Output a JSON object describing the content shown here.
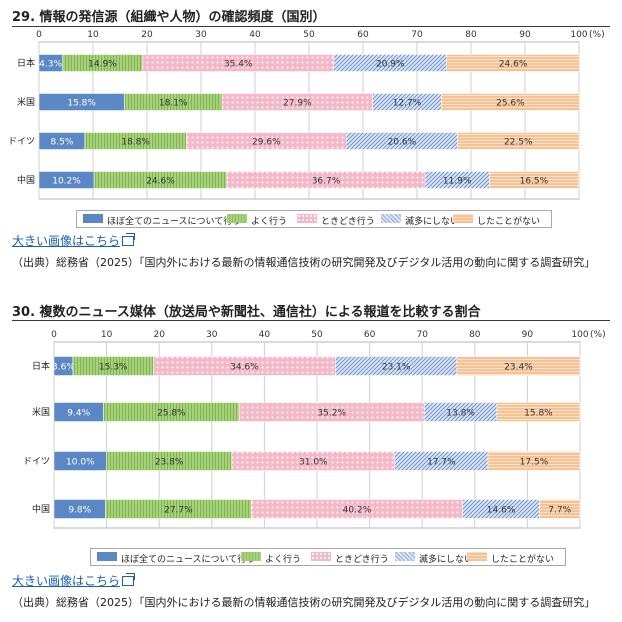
{
  "sections": [
    {
      "title": "29. 情報の発信源（組織や人物）の確認頻度（国別）",
      "link_label": "大きい画像はこちら",
      "source": "（出典）総務省（2025）「国内外における最新の情報通信技術の研究開発及びデジタル活用の動向に関する調査研究」"
    },
    {
      "title": "30. 複数のニュース媒体（放送局や新聞社、通信社）による報道を比較する割合",
      "link_label": "大きい画像はこちら",
      "source": "（出典）総務省（2025）「国内外における最新の情報通信技術の研究開発及びデジタル活用の動向に関する調査研究」"
    }
  ],
  "chart_data": [
    {
      "type": "bar",
      "orientation": "horizontal-stacked",
      "title": "29. 情報の発信源（組織や人物）の確認頻度（国別）",
      "categories": [
        "日本",
        "米国",
        "ドイツ",
        "中国"
      ],
      "xlim": [
        0,
        100
      ],
      "xticks": [
        "0",
        "10",
        "20",
        "30",
        "40",
        "50",
        "60",
        "70",
        "80",
        "90",
        "100"
      ],
      "x_unit": "(%)",
      "legend_position": "bottom",
      "series": [
        {
          "name": "ほぼ全てのニュースについて行う",
          "color": "#5b87c5",
          "pattern": "solid",
          "values": [
            4.3,
            15.8,
            8.5,
            10.2
          ],
          "labels": [
            "4.3%",
            "15.8%",
            "8.5%",
            "10.2%"
          ]
        },
        {
          "name": "よく行う",
          "color": "#a8d27a",
          "pattern": "vlines",
          "values": [
            14.9,
            18.1,
            18.8,
            24.6
          ],
          "labels": [
            "14.9%",
            "18.1%",
            "18.8%",
            "24.6%"
          ]
        },
        {
          "name": "ときどき行う",
          "color": "#f5b8c8",
          "pattern": "dots",
          "values": [
            35.4,
            27.9,
            29.6,
            36.7
          ],
          "labels": [
            "35.4%",
            "27.9%",
            "29.6%",
            "36.7%"
          ]
        },
        {
          "name": "滅多にしない",
          "color": "#a9bfe6",
          "pattern": "diag",
          "values": [
            20.9,
            12.7,
            20.6,
            11.9
          ],
          "labels": [
            "20.9%",
            "12.7%",
            "20.6%",
            "11.9%"
          ]
        },
        {
          "name": "したことがない",
          "color": "#f8c194",
          "pattern": "hlines",
          "values": [
            24.6,
            25.6,
            22.5,
            16.5
          ],
          "labels": [
            "24.6%",
            "25.6%",
            "22.5%",
            "16.5%"
          ]
        }
      ]
    },
    {
      "type": "bar",
      "orientation": "horizontal-stacked",
      "title": "30. 複数のニュース媒体（放送局や新聞社、通信社）による報道を比較する割合",
      "categories": [
        "日本",
        "米国",
        "ドイツ",
        "中国"
      ],
      "xlim": [
        0,
        100
      ],
      "xticks": [
        "0",
        "10",
        "20",
        "30",
        "40",
        "50",
        "60",
        "70",
        "80",
        "90",
        "100"
      ],
      "x_unit": "(%)",
      "legend_position": "bottom",
      "series": [
        {
          "name": "ほぼ全てのニュースについて行う",
          "color": "#5b87c5",
          "pattern": "solid",
          "values": [
            3.6,
            9.4,
            10.0,
            9.8
          ],
          "labels": [
            "3.6%",
            "9.4%",
            "10.0%",
            "9.8%"
          ]
        },
        {
          "name": "よく行う",
          "color": "#a8d27a",
          "pattern": "vlines",
          "values": [
            15.3,
            25.8,
            23.8,
            27.7
          ],
          "labels": [
            "15.3%",
            "25.8%",
            "23.8%",
            "27.7%"
          ]
        },
        {
          "name": "ときどき行う",
          "color": "#f5b8c8",
          "pattern": "dots",
          "values": [
            34.6,
            35.2,
            31.0,
            40.2
          ],
          "labels": [
            "34.6%",
            "35.2%",
            "31.0%",
            "40.2%"
          ]
        },
        {
          "name": "滅多にしない",
          "color": "#a9bfe6",
          "pattern": "diag",
          "values": [
            23.1,
            13.8,
            17.7,
            14.6
          ],
          "labels": [
            "23.1%",
            "13.8%",
            "17.7%",
            "14.6%"
          ]
        },
        {
          "name": "したことがない",
          "color": "#f8c194",
          "pattern": "hlines",
          "values": [
            23.4,
            15.8,
            17.5,
            7.7
          ],
          "labels": [
            "23.4%",
            "15.8%",
            "17.5%",
            "7.7%"
          ]
        }
      ]
    }
  ]
}
